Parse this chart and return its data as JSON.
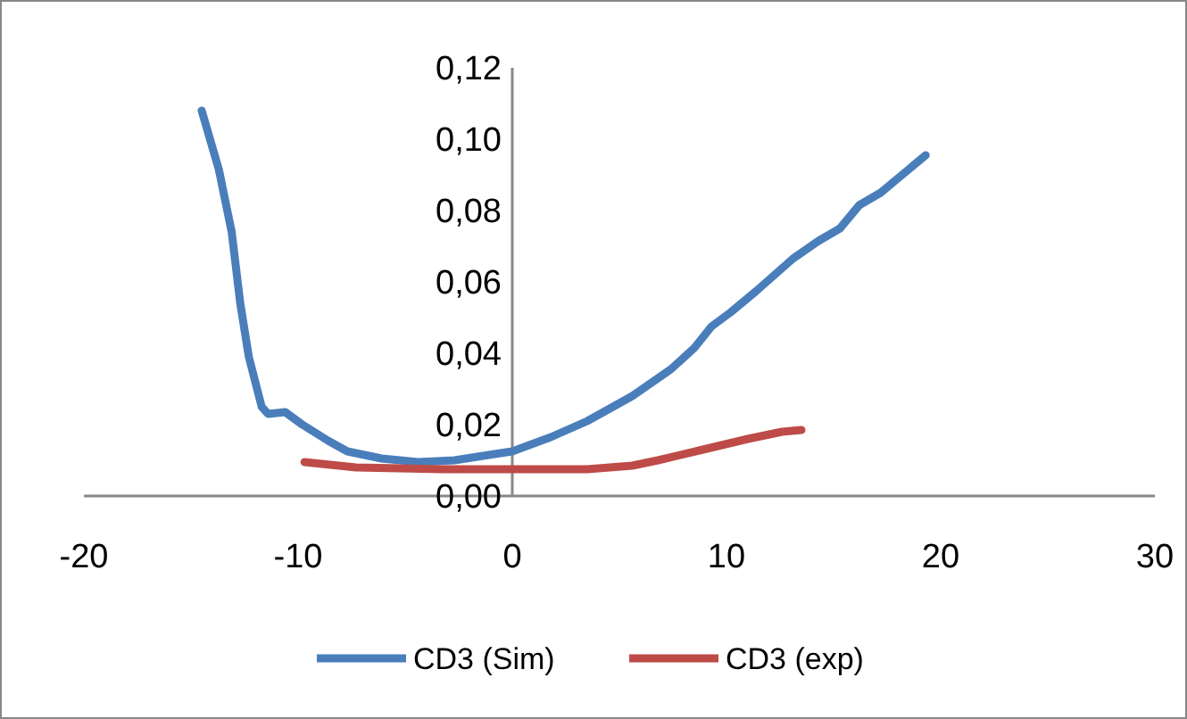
{
  "chart_data": {
    "type": "line",
    "xlim": [
      -20,
      30
    ],
    "xticks": [
      -20,
      -10,
      0,
      10,
      20,
      30
    ],
    "ylim": [
      0,
      0.12
    ],
    "yticks": [
      {
        "value": 0,
        "label": "0,00"
      },
      {
        "value": 0.02,
        "label": "0,02"
      },
      {
        "value": 0.04,
        "label": "0,04"
      },
      {
        "value": 0.06,
        "label": "0,06"
      },
      {
        "value": 0.08,
        "label": "0,08"
      },
      {
        "value": 0.1,
        "label": "0,10"
      },
      {
        "value": 0.12,
        "label": "0,12"
      }
    ],
    "grid": false,
    "legend": "bottom",
    "marker": "none",
    "line_style": "solid",
    "series": [
      {
        "name": "CD3 (Sim)",
        "color": "#4a7ebb",
        "x": [
          -14.5,
          -13.7,
          -13.1,
          -12.7,
          -12.3,
          -11.7,
          -11.4,
          -10.6,
          -9.8,
          -8.6,
          -7.7,
          -6.1,
          -4.4,
          -2.7,
          -1.1,
          0,
          1.8,
          3.5,
          5.6,
          7.4,
          8.5,
          9.3,
          10.2,
          11.4,
          13.1,
          14.3,
          15.3,
          16.2,
          17.2,
          19.3
        ],
        "values": [
          0.108,
          0.0915,
          0.074,
          0.054,
          0.039,
          0.025,
          0.023,
          0.0235,
          0.02,
          0.0155,
          0.0125,
          0.0105,
          0.0095,
          0.01,
          0.0115,
          0.0125,
          0.0165,
          0.021,
          0.028,
          0.0355,
          0.0415,
          0.0475,
          0.0515,
          0.0575,
          0.0665,
          0.0715,
          0.075,
          0.0815,
          0.085,
          0.0955
        ]
      },
      {
        "name": "CD3 (exp)",
        "color": "#be4b48",
        "x": [
          -9.7,
          -7.3,
          -3.2,
          0,
          3.5,
          5.6,
          6.8,
          8.9,
          11,
          12.6,
          13.5
        ],
        "values": [
          0.0095,
          0.008,
          0.0075,
          0.0075,
          0.0075,
          0.0085,
          0.01,
          0.013,
          0.016,
          0.018,
          0.0185
        ]
      }
    ]
  }
}
